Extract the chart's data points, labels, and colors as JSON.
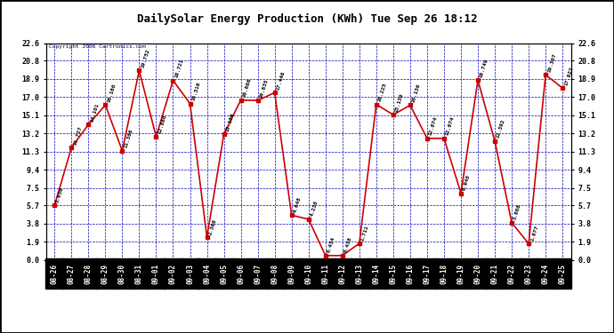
{
  "title": "DailySolar Energy Production (KWh) Tue Sep 26 18:12",
  "copyright": "Copyright 2006 Cartronics.com",
  "x_labels": [
    "08-26",
    "08-27",
    "08-28",
    "08-29",
    "08-30",
    "08-31",
    "09-01",
    "09-02",
    "09-03",
    "09-04",
    "09-05",
    "09-06",
    "09-07",
    "09-08",
    "09-09",
    "09-10",
    "09-11",
    "09-12",
    "09-13",
    "09-14",
    "09-15",
    "09-16",
    "09-17",
    "09-18",
    "09-19",
    "09-20",
    "09-21",
    "09-22",
    "09-23",
    "09-24",
    "09-25"
  ],
  "values": [
    5.656,
    11.727,
    14.101,
    16.16,
    11.386,
    19.752,
    12.86,
    18.721,
    16.316,
    2.366,
    13.1,
    16.666,
    16.635,
    17.446,
    4.648,
    4.23,
    0.434,
    0.438,
    1.711,
    16.225,
    15.139,
    16.136,
    12.674,
    12.674,
    6.94,
    18.749,
    12.392,
    3.868,
    1.677,
    19.307,
    17.922
  ],
  "y_ticks": [
    0.0,
    1.9,
    3.8,
    5.7,
    7.5,
    9.4,
    11.3,
    13.2,
    15.1,
    17.0,
    18.9,
    20.8,
    22.6
  ],
  "y_min": 0.0,
  "y_max": 22.6,
  "line_color": "#cc0000",
  "marker_color": "#cc0000",
  "bg_color": "#ffffff",
  "plot_bg_color": "#ffffff",
  "grid_color": "#0000bb",
  "title_color": "#000000",
  "label_color": "#000000",
  "xtick_bg": "#000000",
  "xtick_fg": "#ffffff",
  "border_color": "#000000",
  "figwidth": 6.9,
  "figheight": 3.75,
  "dpi": 100
}
